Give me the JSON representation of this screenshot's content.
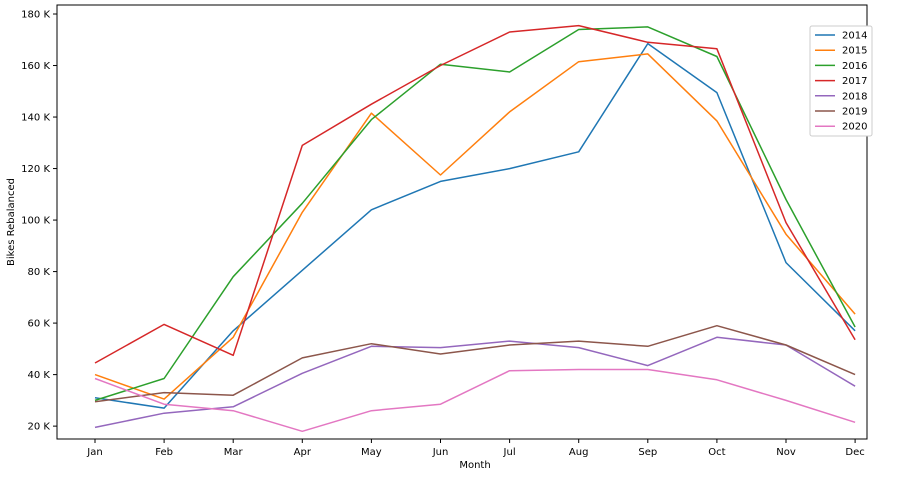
{
  "chart_data": {
    "type": "line",
    "title": "",
    "xlabel": "Month",
    "ylabel": "Bikes Rebalanced",
    "categories": [
      "Jan",
      "Feb",
      "Mar",
      "Apr",
      "May",
      "Jun",
      "Jul",
      "Aug",
      "Sep",
      "Oct",
      "Nov",
      "Dec"
    ],
    "ylim": [
      15000,
      183500
    ],
    "yticks": [
      20000,
      40000,
      60000,
      80000,
      100000,
      120000,
      140000,
      160000,
      180000
    ],
    "ytick_labels": [
      "20 K",
      "40 K",
      "60 K",
      "80 K",
      "100 K",
      "120 K",
      "140 K",
      "160 K",
      "180 K"
    ],
    "grid": false,
    "legend": "top-right",
    "series": [
      {
        "name": "2014",
        "color": "#1f77b4",
        "values": [
          31000,
          27000,
          57000,
          80500,
          104000,
          115000,
          120000,
          126500,
          168500,
          149500,
          83500,
          57000
        ]
      },
      {
        "name": "2015",
        "color": "#ff7f0e",
        "values": [
          40000,
          30500,
          54500,
          103000,
          141500,
          117500,
          142000,
          161500,
          164500,
          138500,
          94500,
          63500
        ]
      },
      {
        "name": "2016",
        "color": "#2ca02c",
        "values": [
          30000,
          38500,
          78000,
          106500,
          139000,
          160500,
          157500,
          174000,
          175000,
          163500,
          108000,
          58500
        ]
      },
      {
        "name": "2017",
        "color": "#d62728",
        "values": [
          44500,
          59500,
          47500,
          129000,
          145000,
          160000,
          173000,
          175500,
          169000,
          166500,
          99000,
          53500
        ]
      },
      {
        "name": "2018",
        "color": "#9467bd",
        "values": [
          19500,
          25000,
          27500,
          40500,
          51000,
          50500,
          53000,
          50500,
          43500,
          54500,
          51500,
          35500
        ]
      },
      {
        "name": "2019",
        "color": "#8c564b",
        "values": [
          29500,
          33000,
          32000,
          46500,
          52000,
          48000,
          51500,
          53000,
          51000,
          59000,
          51500,
          40000
        ]
      },
      {
        "name": "2020",
        "color": "#e377c2",
        "values": [
          38500,
          28500,
          26000,
          18000,
          26000,
          28500,
          41500,
          42000,
          42000,
          38000,
          30000,
          21500
        ]
      }
    ]
  }
}
